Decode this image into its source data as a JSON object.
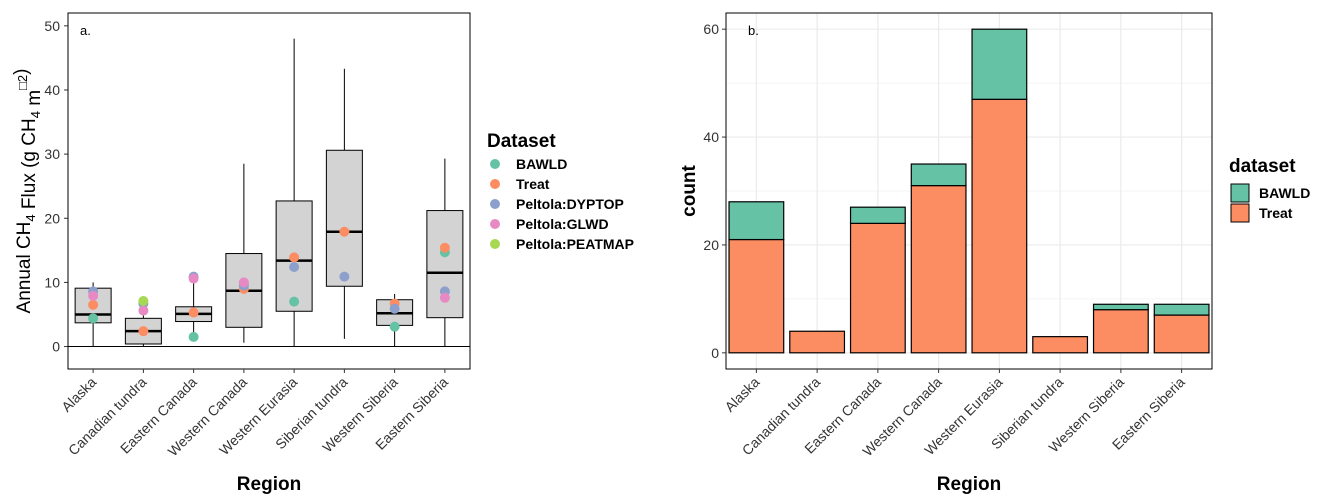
{
  "colors": {
    "BAWLD": "#66c2a5",
    "Treat": "#fc8d62",
    "Peltola:DYPTOP": "#8da0cb",
    "Peltola:GLWD": "#e78ac3",
    "Peltola:PEATMAP": "#a6d854",
    "box_fill": "#d3d3d3",
    "grid": "#ebebeb"
  },
  "chart_data": [
    {
      "type": "boxplot",
      "panel_tag": "a.",
      "xlabel": "Region",
      "ylabel_parts": {
        "pre": "Annual CH",
        "sub1": "4",
        "mid": " Flux (g CH",
        "sub2": "4",
        "post": " m",
        "sup": "□2",
        "close": ")"
      },
      "ylim": [
        -3.5,
        52
      ],
      "yticks": [
        0,
        10,
        20,
        30,
        40,
        50
      ],
      "categories": [
        "Alaska",
        "Canadian tundra",
        "Eastern Canada",
        "Western Canada",
        "Western Eurasia",
        "Siberian tundra",
        "Western Siberia",
        "Eastern Siberia"
      ],
      "boxes": [
        {
          "min": 0,
          "q1": 3.7,
          "median": 5.0,
          "q3": 9.1,
          "max": 10.0
        },
        {
          "min": 0,
          "q1": 0.4,
          "median": 2.4,
          "q3": 4.4,
          "max": 7.3
        },
        {
          "min": 1.3,
          "q1": 3.9,
          "median": 5.1,
          "q3": 6.2,
          "max": 10.0
        },
        {
          "min": 0.6,
          "q1": 3.0,
          "median": 8.7,
          "q3": 14.5,
          "max": 28.5
        },
        {
          "min": 0,
          "q1": 5.5,
          "median": 13.4,
          "q3": 22.7,
          "max": 48.0
        },
        {
          "min": 1.2,
          "q1": 9.4,
          "median": 17.9,
          "q3": 30.6,
          "max": 43.3
        },
        {
          "min": 0,
          "q1": 3.3,
          "median": 5.2,
          "q3": 7.3,
          "max": 8.2
        },
        {
          "min": 0,
          "q1": 4.5,
          "median": 11.5,
          "q3": 21.2,
          "max": 29.3
        }
      ],
      "points": [
        {
          "dataset": "BAWLD",
          "values": [
            4.4,
            null,
            1.5,
            9.8,
            7.0,
            null,
            3.1,
            14.7
          ]
        },
        {
          "dataset": "Treat",
          "values": [
            6.5,
            2.4,
            5.3,
            9.0,
            13.9,
            17.9,
            6.7,
            15.4
          ]
        },
        {
          "dataset": "Peltola:DYPTOP",
          "values": [
            8.6,
            6.7,
            10.9,
            9.5,
            12.4,
            10.9,
            5.9,
            8.6
          ]
        },
        {
          "dataset": "Peltola:GLWD",
          "values": [
            7.9,
            5.6,
            10.6,
            10.0,
            null,
            null,
            null,
            7.6
          ]
        },
        {
          "dataset": "Peltola:PEATMAP",
          "values": [
            null,
            7.1,
            null,
            null,
            null,
            null,
            null,
            null
          ]
        }
      ],
      "legend": {
        "title": "Dataset",
        "items": [
          "BAWLD",
          "Treat",
          "Peltola:DYPTOP",
          "Peltola:GLWD",
          "Peltola:PEATMAP"
        ]
      }
    },
    {
      "type": "bar",
      "stacked": true,
      "panel_tag": "b.",
      "xlabel": "Region",
      "ylabel": "count",
      "ylim": [
        -3,
        63
      ],
      "yticks": [
        0,
        20,
        40,
        60
      ],
      "categories": [
        "Alaska",
        "Canadian tundra",
        "Eastern Canada",
        "Western Canada",
        "Western Eurasia",
        "Siberian tundra",
        "Western Siberia",
        "Eastern Siberia"
      ],
      "series": [
        {
          "name": "Treat",
          "values": [
            21,
            4,
            24,
            31,
            47,
            3,
            8,
            7
          ]
        },
        {
          "name": "BAWLD",
          "values": [
            7,
            0,
            3,
            4,
            13,
            0,
            1,
            2
          ]
        }
      ],
      "legend": {
        "title": "dataset",
        "items": [
          "BAWLD",
          "Treat"
        ]
      }
    }
  ]
}
